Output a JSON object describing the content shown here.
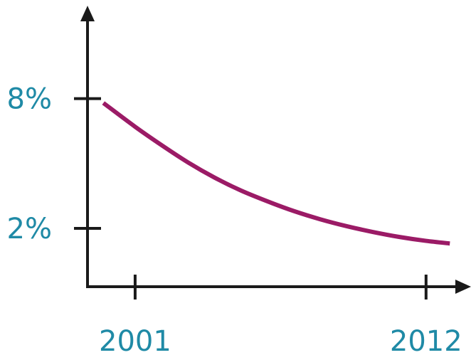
{
  "chart_data": {
    "type": "line",
    "title": "",
    "xlabel": "",
    "ylabel": "",
    "x_ticks": [
      {
        "value": 2001,
        "label": "2001"
      },
      {
        "value": 2012,
        "label": "2012"
      }
    ],
    "y_ticks": [
      {
        "value": 8,
        "label": "8%"
      },
      {
        "value": 2,
        "label": "2%"
      }
    ],
    "xlim": [
      1999.2,
      2013.7
    ],
    "ylim": [
      -0.7,
      12.3
    ],
    "grid": false,
    "legend": "none",
    "series": [
      {
        "x": [
          1999.8,
          2001,
          2002,
          2003,
          2004,
          2005,
          2006,
          2007,
          2008,
          2009,
          2010,
          2011,
          2012,
          2012.9
        ],
        "y": [
          7.8,
          6.7,
          5.85,
          5.05,
          4.35,
          3.75,
          3.25,
          2.8,
          2.42,
          2.1,
          1.83,
          1.6,
          1.42,
          1.3
        ],
        "color": "#9b1b66"
      }
    ],
    "colors": {
      "axis": "#1a1a1a",
      "tick_label": "#1f8aa6",
      "line": "#9b1b66"
    }
  }
}
